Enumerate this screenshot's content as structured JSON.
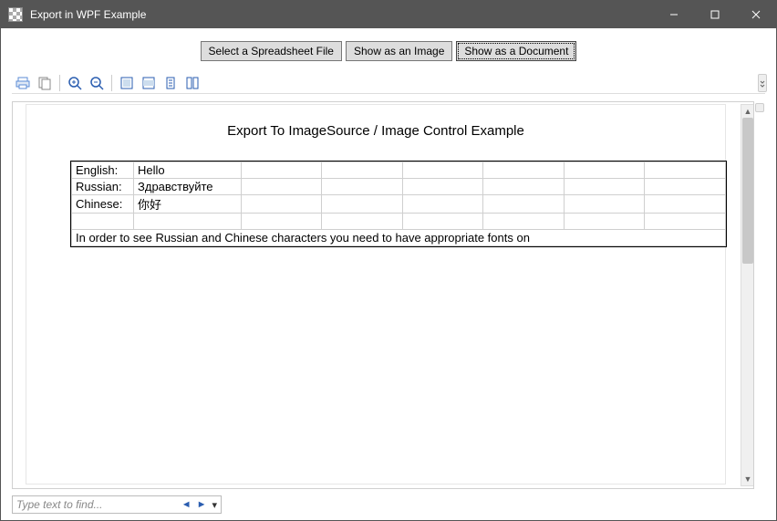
{
  "window": {
    "title": "Export in WPF Example"
  },
  "buttons": {
    "select_file": "Select a Spreadsheet File",
    "show_image": "Show as an Image",
    "show_document": "Show as a Document"
  },
  "toolbar_icons": {
    "print": "print-icon",
    "copy": "copy-icon",
    "zoom_in": "zoom-in-icon",
    "zoom_out": "zoom-out-icon",
    "fit_page": "fit-page-icon",
    "fit_width": "fit-width-icon",
    "single_page": "single-page-icon",
    "continuous": "continuous-icon"
  },
  "document": {
    "heading": "Export To ImageSource / Image Control Example",
    "rows": [
      {
        "label": "English:",
        "value": "Hello"
      },
      {
        "label": "Russian:",
        "value": "Здравствуйте"
      },
      {
        "label": "Chinese:",
        "value": "你好"
      }
    ],
    "blank_row": true,
    "footnote": "In order to see Russian and Chinese characters you need to have appropriate fonts on",
    "extra_cols": 6
  },
  "find": {
    "placeholder": "Type text to find...",
    "prev": "◄",
    "next": "►",
    "menu": "▾"
  },
  "colors": {
    "titlebar_bg": "#555555",
    "button_bg": "#dddddd",
    "grid_line": "#cfcfcf",
    "scroll_thumb": "#c8c8c8"
  }
}
